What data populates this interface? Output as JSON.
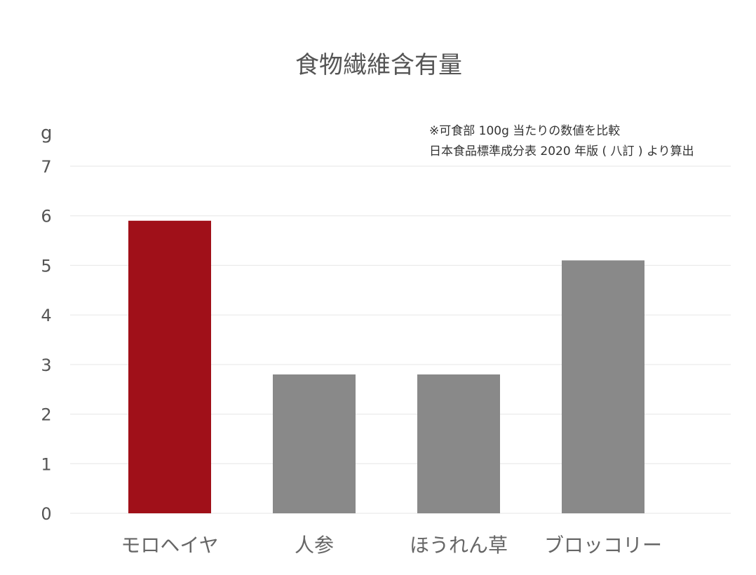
{
  "chart_data": {
    "type": "bar",
    "title": "食物繊維含有量",
    "ylabel": "g",
    "note_lines": [
      "※可食部 100g 当たりの数値を比較",
      "日本食品標準成分表 2020 年版 ( 八訂 ) より算出"
    ],
    "categories": [
      "モロヘイヤ",
      "人参",
      "ほうれん草",
      "ブロッコリー"
    ],
    "values": [
      5.9,
      2.8,
      2.8,
      5.1
    ],
    "ylim": [
      0,
      7
    ],
    "yticks": [
      "0",
      "1",
      "2",
      "3",
      "4",
      "5",
      "6",
      "7"
    ],
    "grid": true,
    "highlight_index": 0,
    "colors": {
      "highlight": "#a01019",
      "default": "#898989",
      "highlight_label": "#a01019",
      "default_label": "#666666"
    }
  }
}
